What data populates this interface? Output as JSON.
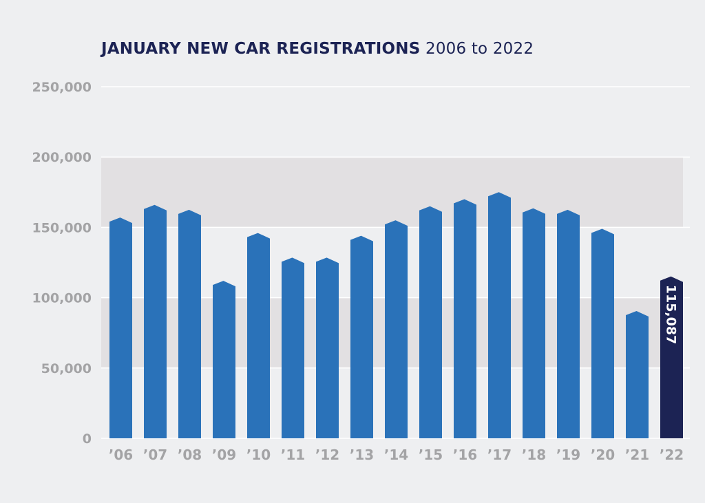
{
  "chart_data": {
    "type": "bar",
    "title": "JANUARY NEW CAR REGISTRATIONS",
    "subtitle": "2006 to 2022",
    "xlabel": "",
    "ylabel": "",
    "ylim": [
      0,
      250000
    ],
    "yticks": [
      0,
      50000,
      100000,
      150000,
      200000,
      250000
    ],
    "ytick_labels": [
      "0",
      "50,000",
      "100,000",
      "150,000",
      "200,000",
      "250,000"
    ],
    "shaded_bands": [
      [
        50000,
        100000
      ],
      [
        150000,
        200000
      ]
    ],
    "grid": true,
    "categories": [
      "’06",
      "’07",
      "’08",
      "’09",
      "’10",
      "’11",
      "’12",
      "’13",
      "’14",
      "’15",
      "’16",
      "’17",
      "’18",
      "’19",
      "’20",
      "’21",
      "’22"
    ],
    "values": [
      157000,
      166000,
      162500,
      112000,
      146000,
      128500,
      128500,
      144000,
      155000,
      165000,
      170000,
      175000,
      163500,
      162500,
      149000,
      90500,
      115087
    ],
    "highlight_index": 16,
    "highlight_label": "115,087",
    "colors": {
      "bar": "#2a72b9",
      "highlight": "#1c2354",
      "band": "#e2e0e2",
      "grid": "#ffffff",
      "background": "#eeeff1"
    }
  }
}
